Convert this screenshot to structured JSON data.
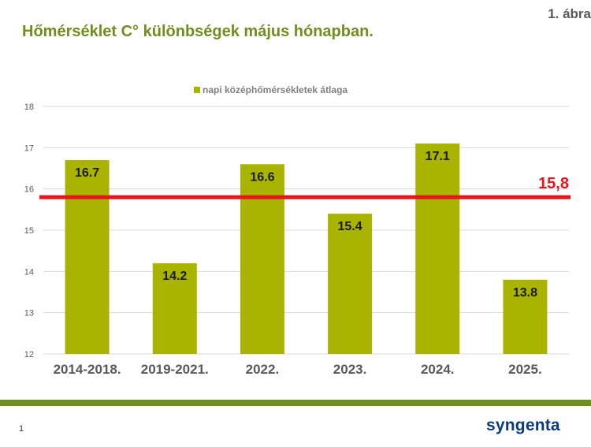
{
  "header": {
    "title": "Hőmérséklet C° különbségek május hónapban.",
    "figure_label": "1. ábra"
  },
  "footer": {
    "page_number": "1",
    "logo_text": "syngenta"
  },
  "colors": {
    "bar": "#a8b400",
    "reference_line": "#e8141c",
    "title": "#6e8f1e",
    "footer_bar": "#6e8f1e",
    "grid": "#d9d9d9",
    "axis_text": "#595959"
  },
  "chart_data": {
    "type": "bar",
    "categories": [
      "2014-2018.",
      "2019-2021.",
      "2022.",
      "2023.",
      "2024.",
      "2025."
    ],
    "series": [
      {
        "name": "napi középhőmérsékletek átlaga",
        "values": [
          16.7,
          14.2,
          16.6,
          15.4,
          17.1,
          13.8
        ]
      }
    ],
    "data_labels": [
      "16.7",
      "14.2",
      "16.6",
      "15.4",
      "17.1",
      "13.8"
    ],
    "reference_line": {
      "value": 15.8,
      "label": "15,8"
    },
    "ylim": [
      12,
      18
    ],
    "yticks": [
      12,
      13,
      14,
      15,
      16,
      17,
      18
    ],
    "grid": true,
    "legend": "top-center"
  }
}
